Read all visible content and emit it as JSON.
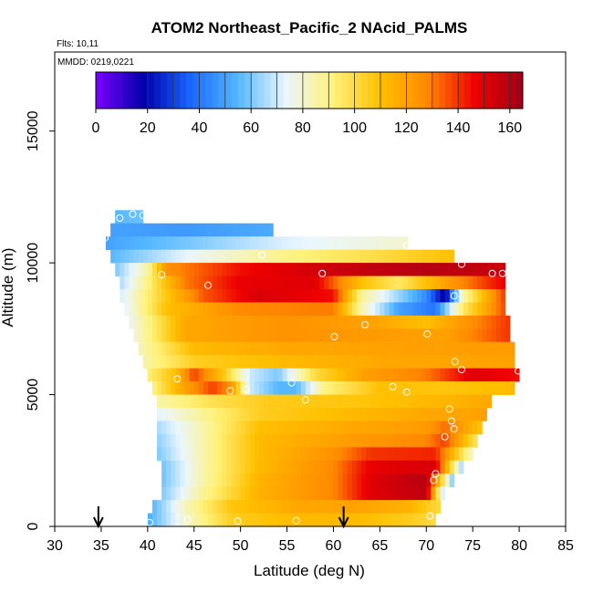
{
  "chart_data": {
    "type": "heatmap",
    "title": "ATOM2 Northeast_Pacific_2 NAcid_PALMS",
    "flights_text": "Flts: 10,11",
    "mmdd_text": "MMDD: 0219,0221",
    "xlabel": "Latitude (deg N)",
    "ylabel": "Altitude (m)",
    "xlim": [
      30,
      85
    ],
    "ylim": [
      0,
      18000
    ],
    "x_ticks": [
      "30",
      "35",
      "40",
      "45",
      "50",
      "55",
      "60",
      "65",
      "70",
      "75",
      "80",
      "85"
    ],
    "y_ticks": [
      "0",
      "5000",
      "10000",
      "15000"
    ],
    "colorbar": {
      "range": [
        0,
        165
      ],
      "tick_labels": [
        "0",
        "20",
        "40",
        "60",
        "80",
        "100",
        "120",
        "140",
        "160"
      ],
      "colors": [
        "#7b00ff",
        "#0000aa",
        "#1a66ff",
        "#55b8ff",
        "#eaf6ff",
        "#fff27a",
        "#ffc000",
        "#ff8800",
        "#ee0000",
        "#a00018"
      ]
    },
    "arrows": [
      {
        "x": 34.7,
        "label": ""
      },
      {
        "x": 61.1,
        "label": ""
      }
    ],
    "layers": [
      {
        "alt": [
          11500,
          12000
        ],
        "x_start": 36.5,
        "x_end": 39.5,
        "points": [
          [
            36.5,
            55
          ],
          [
            39.5,
            58
          ]
        ]
      },
      {
        "alt": [
          11000,
          11500
        ],
        "x_start": 36.0,
        "x_end": 53.5,
        "points": [
          [
            36,
            50
          ],
          [
            44,
            48
          ],
          [
            53.5,
            52
          ]
        ]
      },
      {
        "alt": [
          10500,
          11000
        ],
        "x_start": 35.5,
        "x_end": 68.0,
        "points": [
          [
            35.5,
            50
          ],
          [
            45,
            60
          ],
          [
            55,
            72
          ],
          [
            68,
            80
          ]
        ]
      },
      {
        "alt": [
          10000,
          10500
        ],
        "x_start": 36.0,
        "x_end": 73.0,
        "points": [
          [
            36,
            55
          ],
          [
            45,
            75
          ],
          [
            55,
            90
          ],
          [
            65,
            100
          ],
          [
            73,
            110
          ]
        ]
      },
      {
        "alt": [
          9500,
          10000
        ],
        "x_start": 36.5,
        "x_end": 78.5,
        "points": [
          [
            36.5,
            60
          ],
          [
            40,
            85
          ],
          [
            42,
            125
          ],
          [
            50,
            145
          ],
          [
            60,
            155
          ],
          [
            70,
            160
          ],
          [
            78.5,
            155
          ]
        ]
      },
      {
        "alt": [
          9000,
          9500
        ],
        "x_start": 37.0,
        "x_end": 78.5,
        "points": [
          [
            37,
            65
          ],
          [
            40,
            90
          ],
          [
            44,
            130
          ],
          [
            50,
            148
          ],
          [
            58,
            150
          ],
          [
            63,
            110
          ],
          [
            67,
            95
          ],
          [
            72,
            120
          ],
          [
            78.5,
            148
          ]
        ]
      },
      {
        "alt": [
          8500,
          9000
        ],
        "x_start": 37.0,
        "x_end": 78.5,
        "points": [
          [
            37,
            70
          ],
          [
            41,
            100
          ],
          [
            46,
            135
          ],
          [
            52,
            152
          ],
          [
            60,
            145
          ],
          [
            63,
            88
          ],
          [
            66,
            70
          ],
          [
            70,
            45
          ],
          [
            72,
            15
          ],
          [
            74,
            85
          ],
          [
            78.5,
            140
          ]
        ]
      },
      {
        "alt": [
          8000,
          8500
        ],
        "x_start": 37.5,
        "x_end": 78.5,
        "points": [
          [
            37.5,
            72
          ],
          [
            42,
            110
          ],
          [
            50,
            128
          ],
          [
            60,
            130
          ],
          [
            63,
            85
          ],
          [
            67,
            50
          ],
          [
            71,
            40
          ],
          [
            74,
            95
          ],
          [
            78.5,
            138
          ]
        ]
      },
      {
        "alt": [
          7500,
          8000
        ],
        "x_start": 38.0,
        "x_end": 79.0,
        "points": [
          [
            38,
            75
          ],
          [
            44,
            118
          ],
          [
            55,
            125
          ],
          [
            64,
            120
          ],
          [
            70,
            110
          ],
          [
            79,
            140
          ]
        ]
      },
      {
        "alt": [
          7000,
          7500
        ],
        "x_start": 38.5,
        "x_end": 79.0,
        "points": [
          [
            38.5,
            78
          ],
          [
            44,
            118
          ],
          [
            55,
            125
          ],
          [
            65,
            122
          ],
          [
            72,
            120
          ],
          [
            79,
            140
          ]
        ]
      },
      {
        "alt": [
          6500,
          7000
        ],
        "x_start": 39.0,
        "x_end": 79.5,
        "points": [
          [
            39,
            82
          ],
          [
            45,
            112
          ],
          [
            55,
            118
          ],
          [
            65,
            120
          ],
          [
            79.5,
            122
          ]
        ]
      },
      {
        "alt": [
          6000,
          6500
        ],
        "x_start": 39.5,
        "x_end": 79.5,
        "points": [
          [
            39.5,
            85
          ],
          [
            45,
            105
          ],
          [
            55,
            112
          ],
          [
            65,
            118
          ],
          [
            79.5,
            120
          ]
        ]
      },
      {
        "alt": [
          5500,
          6000
        ],
        "x_start": 40.0,
        "x_end": 80.0,
        "points": [
          [
            40,
            92
          ],
          [
            43,
            110
          ],
          [
            45,
            138
          ],
          [
            48,
            110
          ],
          [
            51,
            70
          ],
          [
            54,
            60
          ],
          [
            58,
            100
          ],
          [
            63,
            120
          ],
          [
            70,
            130
          ],
          [
            75,
            150
          ],
          [
            80,
            145
          ]
        ]
      },
      {
        "alt": [
          5000,
          5500
        ],
        "x_start": 40.5,
        "x_end": 79.5,
        "points": [
          [
            40.5,
            90
          ],
          [
            44,
            120
          ],
          [
            47,
            138
          ],
          [
            49,
            125
          ],
          [
            51,
            70
          ],
          [
            54,
            55
          ],
          [
            56,
            55
          ],
          [
            59,
            90
          ],
          [
            65,
            110
          ],
          [
            72,
            108
          ],
          [
            79.5,
            112
          ]
        ]
      },
      {
        "alt": [
          4500,
          5000
        ],
        "x_start": 41.0,
        "x_end": 77.0,
        "points": [
          [
            41,
            85
          ],
          [
            47,
            98
          ],
          [
            53,
            106
          ],
          [
            62,
            108
          ],
          [
            70,
            112
          ],
          [
            77,
            118
          ]
        ]
      },
      {
        "alt": [
          4000,
          4500
        ],
        "x_start": 41.0,
        "x_end": 76.5,
        "points": [
          [
            41,
            72
          ],
          [
            46,
            88
          ],
          [
            52,
            105
          ],
          [
            62,
            112
          ],
          [
            70,
            118
          ],
          [
            76.5,
            120
          ]
        ]
      },
      {
        "alt": [
          3500,
          4000
        ],
        "x_start": 41.0,
        "x_end": 76.0,
        "points": [
          [
            41,
            65
          ],
          [
            46,
            85
          ],
          [
            52,
            110
          ],
          [
            62,
            118
          ],
          [
            70,
            122
          ],
          [
            72,
            132
          ],
          [
            76,
            108
          ]
        ]
      },
      {
        "alt": [
          3000,
          3500
        ],
        "x_start": 41.0,
        "x_end": 75.5,
        "points": [
          [
            41,
            62
          ],
          [
            46,
            85
          ],
          [
            52,
            112
          ],
          [
            62,
            122
          ],
          [
            70,
            128
          ],
          [
            72,
            138
          ],
          [
            75.5,
            95
          ]
        ]
      },
      {
        "alt": [
          2500,
          3000
        ],
        "x_start": 41.0,
        "x_end": 75.0,
        "points": [
          [
            41,
            60
          ],
          [
            46,
            85
          ],
          [
            52,
            112
          ],
          [
            60,
            125
          ],
          [
            64,
            140
          ],
          [
            71,
            142
          ],
          [
            75,
            80
          ]
        ]
      },
      {
        "alt": [
          2000,
          2500
        ],
        "x_start": 41.5,
        "x_end": 74.0,
        "points": [
          [
            41.5,
            58
          ],
          [
            46,
            85
          ],
          [
            52,
            112
          ],
          [
            60,
            128
          ],
          [
            64,
            148
          ],
          [
            71,
            152
          ],
          [
            74,
            60
          ]
        ]
      },
      {
        "alt": [
          1500,
          2000
        ],
        "x_start": 41.5,
        "x_end": 73.0,
        "points": [
          [
            41.5,
            58
          ],
          [
            46,
            85
          ],
          [
            52,
            114
          ],
          [
            60,
            128
          ],
          [
            64,
            150
          ],
          [
            70,
            160
          ],
          [
            73,
            55
          ]
        ]
      },
      {
        "alt": [
          1000,
          1500
        ],
        "x_start": 41.5,
        "x_end": 72.0,
        "points": [
          [
            41.5,
            60
          ],
          [
            46,
            88
          ],
          [
            52,
            115
          ],
          [
            60,
            128
          ],
          [
            64,
            150
          ],
          [
            70,
            158
          ],
          [
            72,
            60
          ]
        ]
      },
      {
        "alt": [
          500,
          1000
        ],
        "x_start": 40.5,
        "x_end": 71.5,
        "points": [
          [
            40.5,
            55
          ],
          [
            44,
            82
          ],
          [
            49,
            108
          ],
          [
            56,
            118
          ],
          [
            62,
            120
          ],
          [
            68,
            115
          ],
          [
            71.5,
            100
          ]
        ]
      },
      {
        "alt": [
          0,
          500
        ],
        "x_start": 40.0,
        "x_end": 71.0,
        "points": [
          [
            40,
            52
          ],
          [
            44,
            80
          ],
          [
            49,
            105
          ],
          [
            56,
            112
          ],
          [
            62,
            112
          ],
          [
            68,
            106
          ],
          [
            71,
            100
          ]
        ]
      }
    ],
    "markers": [
      [
        37.0,
        11700
      ],
      [
        38.4,
        11850
      ],
      [
        39.5,
        11800
      ],
      [
        35.4,
        10950
      ],
      [
        52.3,
        10300
      ],
      [
        67.9,
        10650
      ],
      [
        73.8,
        9950
      ],
      [
        41.5,
        9550
      ],
      [
        58.8,
        9600
      ],
      [
        77.1,
        9600
      ],
      [
        78.2,
        9600
      ],
      [
        46.5,
        9150
      ],
      [
        73.0,
        8750
      ],
      [
        63.4,
        7650
      ],
      [
        70.1,
        7300
      ],
      [
        60.1,
        7200
      ],
      [
        73.1,
        6250
      ],
      [
        73.8,
        5950
      ],
      [
        79.9,
        5900
      ],
      [
        43.2,
        5600
      ],
      [
        55.5,
        5450
      ],
      [
        48.9,
        5150
      ],
      [
        50.6,
        5200
      ],
      [
        66.4,
        5300
      ],
      [
        67.9,
        5100
      ],
      [
        57.0,
        4800
      ],
      [
        72.5,
        4450
      ],
      [
        72.7,
        4000
      ],
      [
        73.0,
        3700
      ],
      [
        72.0,
        3400
      ],
      [
        71.0,
        2000
      ],
      [
        70.8,
        1750
      ],
      [
        40.2,
        150
      ],
      [
        44.3,
        250
      ],
      [
        49.7,
        200
      ],
      [
        56.0,
        220
      ],
      [
        70.4,
        400
      ]
    ]
  }
}
